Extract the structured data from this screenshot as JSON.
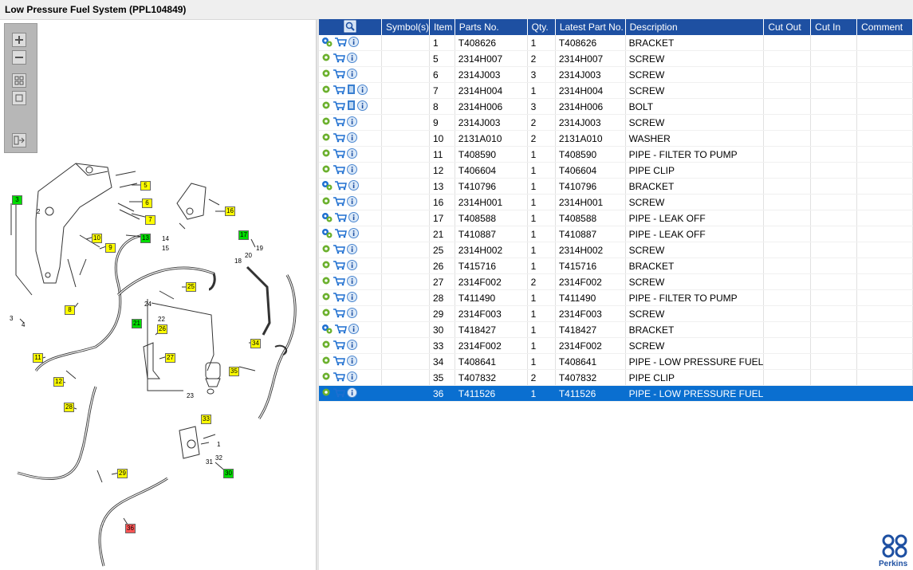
{
  "window": {
    "title": "Low Pressure Fuel System (PPL104849)"
  },
  "colors": {
    "header": "#1e50a2",
    "selected": "#0a6fd0",
    "callout_yellow": "#ffff00",
    "callout_green": "#00dd00",
    "callout_red": "#ff5555"
  },
  "toolbox": {
    "buttons": [
      "zoom-in-icon",
      "zoom-out-icon",
      "fit-icon",
      "reset-icon",
      "toggle-panel-icon"
    ]
  },
  "table": {
    "columns": [
      "",
      "Symbol(s)",
      "Item",
      "Parts No.",
      "Qty.",
      "Latest Part No.",
      "Description",
      "Cut Out",
      "Cut In",
      "Comment"
    ],
    "rows": [
      {
        "icons": [
          "gear-pair",
          "cart",
          "info"
        ],
        "item": "1",
        "part": "T408626",
        "qty": "1",
        "latest": "T408626",
        "desc": "BRACKET"
      },
      {
        "icons": [
          "gear",
          "cart",
          "info"
        ],
        "item": "5",
        "part": "2314H007",
        "qty": "2",
        "latest": "2314H007",
        "desc": "SCREW"
      },
      {
        "icons": [
          "gear",
          "cart",
          "info"
        ],
        "item": "6",
        "part": "2314J003",
        "qty": "3",
        "latest": "2314J003",
        "desc": "SCREW"
      },
      {
        "icons": [
          "gear",
          "cart",
          "book",
          "info"
        ],
        "item": "7",
        "part": "2314H004",
        "qty": "1",
        "latest": "2314H004",
        "desc": "SCREW"
      },
      {
        "icons": [
          "gear",
          "cart",
          "book",
          "info"
        ],
        "item": "8",
        "part": "2314H006",
        "qty": "3",
        "latest": "2314H006",
        "desc": "BOLT"
      },
      {
        "icons": [
          "gear",
          "cart",
          "info"
        ],
        "item": "9",
        "part": "2314J003",
        "qty": "2",
        "latest": "2314J003",
        "desc": "SCREW"
      },
      {
        "icons": [
          "gear",
          "cart",
          "info"
        ],
        "item": "10",
        "part": "2131A010",
        "qty": "2",
        "latest": "2131A010",
        "desc": "WASHER"
      },
      {
        "icons": [
          "gear",
          "cart",
          "info"
        ],
        "item": "11",
        "part": "T408590",
        "qty": "1",
        "latest": "T408590",
        "desc": "PIPE - FILTER TO PUMP"
      },
      {
        "icons": [
          "gear",
          "cart",
          "info"
        ],
        "item": "12",
        "part": "T406604",
        "qty": "1",
        "latest": "T406604",
        "desc": "PIPE CLIP"
      },
      {
        "icons": [
          "gear-pair",
          "cart",
          "info"
        ],
        "item": "13",
        "part": "T410796",
        "qty": "1",
        "latest": "T410796",
        "desc": "BRACKET"
      },
      {
        "icons": [
          "gear",
          "cart",
          "info"
        ],
        "item": "16",
        "part": "2314H001",
        "qty": "1",
        "latest": "2314H001",
        "desc": "SCREW"
      },
      {
        "icons": [
          "gear-pair",
          "cart",
          "info"
        ],
        "item": "17",
        "part": "T408588",
        "qty": "1",
        "latest": "T408588",
        "desc": "PIPE - LEAK OFF"
      },
      {
        "icons": [
          "gear-pair",
          "cart",
          "info"
        ],
        "item": "21",
        "part": "T410887",
        "qty": "1",
        "latest": "T410887",
        "desc": "PIPE - LEAK OFF"
      },
      {
        "icons": [
          "gear",
          "cart",
          "info"
        ],
        "item": "25",
        "part": "2314H002",
        "qty": "1",
        "latest": "2314H002",
        "desc": "SCREW"
      },
      {
        "icons": [
          "gear",
          "cart",
          "info"
        ],
        "item": "26",
        "part": "T415716",
        "qty": "1",
        "latest": "T415716",
        "desc": "BRACKET"
      },
      {
        "icons": [
          "gear",
          "cart",
          "info"
        ],
        "item": "27",
        "part": "2314F002",
        "qty": "2",
        "latest": "2314F002",
        "desc": "SCREW"
      },
      {
        "icons": [
          "gear",
          "cart",
          "info"
        ],
        "item": "28",
        "part": "T411490",
        "qty": "1",
        "latest": "T411490",
        "desc": "PIPE - FILTER TO PUMP"
      },
      {
        "icons": [
          "gear",
          "cart",
          "info"
        ],
        "item": "29",
        "part": "2314F003",
        "qty": "1",
        "latest": "2314F003",
        "desc": "SCREW"
      },
      {
        "icons": [
          "gear-pair",
          "cart",
          "info"
        ],
        "item": "30",
        "part": "T418427",
        "qty": "1",
        "latest": "T418427",
        "desc": "BRACKET"
      },
      {
        "icons": [
          "gear",
          "cart",
          "info"
        ],
        "item": "33",
        "part": "2314F002",
        "qty": "1",
        "latest": "2314F002",
        "desc": "SCREW"
      },
      {
        "icons": [
          "gear",
          "cart",
          "info"
        ],
        "item": "34",
        "part": "T408641",
        "qty": "1",
        "latest": "T408641",
        "desc": "PIPE - LOW PRESSURE FUEL"
      },
      {
        "icons": [
          "gear",
          "cart",
          "info"
        ],
        "item": "35",
        "part": "T407832",
        "qty": "2",
        "latest": "T407832",
        "desc": "PIPE CLIP"
      },
      {
        "icons": [
          "gear",
          "cart",
          "info"
        ],
        "item": "36",
        "part": "T411526",
        "qty": "1",
        "latest": "T411526",
        "desc": "PIPE - LOW PRESSURE FUEL",
        "selected": true
      }
    ]
  },
  "diagram": {
    "callouts": [
      {
        "n": "3",
        "color": "green"
      },
      {
        "n": "5",
        "color": "yellow"
      },
      {
        "n": "6",
        "color": "yellow"
      },
      {
        "n": "7",
        "color": "yellow"
      },
      {
        "n": "13",
        "color": "green"
      },
      {
        "n": "10",
        "color": "yellow"
      },
      {
        "n": "9",
        "color": "yellow"
      },
      {
        "n": "16",
        "color": "yellow"
      },
      {
        "n": "17",
        "color": "green"
      },
      {
        "n": "8",
        "color": "yellow"
      },
      {
        "n": "25",
        "color": "yellow"
      },
      {
        "n": "21",
        "color": "green"
      },
      {
        "n": "26",
        "color": "yellow"
      },
      {
        "n": "27",
        "color": "yellow"
      },
      {
        "n": "34",
        "color": "yellow"
      },
      {
        "n": "35",
        "color": "yellow"
      },
      {
        "n": "11",
        "color": "yellow"
      },
      {
        "n": "12",
        "color": "yellow"
      },
      {
        "n": "28",
        "color": "yellow"
      },
      {
        "n": "33",
        "color": "yellow"
      },
      {
        "n": "30",
        "color": "green"
      },
      {
        "n": "29",
        "color": "yellow"
      },
      {
        "n": "36",
        "color": "red"
      }
    ],
    "labels": [
      "2",
      "4",
      "3",
      "14",
      "15",
      "18",
      "20",
      "19",
      "24",
      "22",
      "23",
      "1",
      "31",
      "32"
    ]
  },
  "logo": {
    "text": "Perkins"
  }
}
